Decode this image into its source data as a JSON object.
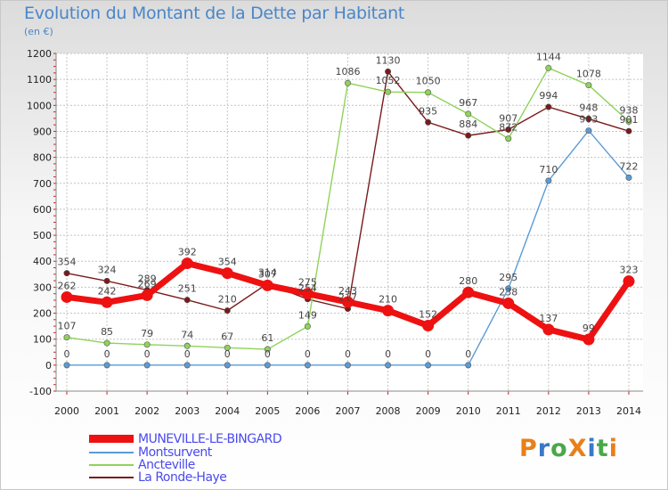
{
  "title": "Evolution du Montant de la Dette par Habitant",
  "subtitle": "(en €)",
  "logo": {
    "text": "ProXiti",
    "letters": [
      "P",
      "r",
      "o",
      "X",
      "i",
      "t",
      "i"
    ],
    "colors": [
      "#e8801a",
      "#3a78c8",
      "#4aa84a",
      "#e8801a",
      "#3a78c8",
      "#4aa84a",
      "#e8801a"
    ]
  },
  "chart_data": {
    "type": "line",
    "x": [
      "2000",
      "2001",
      "2002",
      "2003",
      "2004",
      "2005",
      "2006",
      "2007",
      "2008",
      "2009",
      "2010",
      "2011",
      "2012",
      "2013",
      "2014"
    ],
    "ylim": [
      -100,
      1200
    ],
    "yticks": [
      "-100",
      "0",
      "100",
      "200",
      "300",
      "400",
      "500",
      "600",
      "700",
      "800",
      "900",
      "1000",
      "1100",
      "1200"
    ],
    "grid": true,
    "legend_position": "bottom-left",
    "series": [
      {
        "name": "MUNEVILLE-LE-BINGARD",
        "color": "#ee1111",
        "values": [
          262,
          242,
          269,
          392,
          354,
          307,
          275,
          243,
          210,
          152,
          280,
          238,
          137,
          99,
          323
        ],
        "labels": [
          "262",
          "242",
          "269",
          "392",
          "354",
          "307",
          "275",
          "243",
          "210",
          "152",
          "280",
          "238",
          "137",
          "99",
          "323"
        ]
      },
      {
        "name": "Montsurvent",
        "color": "#5b9bd5",
        "values": [
          0,
          0,
          0,
          0,
          0,
          0,
          0,
          0,
          0,
          0,
          0,
          295,
          710,
          903,
          722
        ],
        "labels": [
          "0",
          "0",
          "0",
          "0",
          "0",
          "0",
          "0",
          "0",
          "0",
          "0",
          "0",
          "295",
          "710",
          "903",
          "722"
        ]
      },
      {
        "name": "Ancteville",
        "color": "#8fd35a",
        "values": [
          107,
          85,
          79,
          74,
          67,
          61,
          149,
          1086,
          1052,
          1050,
          967,
          872,
          1144,
          1078,
          938
        ],
        "labels": [
          "107",
          "85",
          "79",
          "74",
          "67",
          "61",
          "149",
          "1086",
          "1052",
          "1050",
          "967",
          "872",
          "1144",
          "1078",
          "938"
        ]
      },
      {
        "name": "La Ronde-Haye",
        "color": "#7a1a1a",
        "values": [
          354,
          324,
          289,
          251,
          210,
          314,
          254,
          217,
          1130,
          935,
          884,
          907,
          994,
          948,
          901
        ],
        "labels": [
          "354",
          "324",
          "289",
          "251",
          "210",
          "314",
          "254",
          "217",
          "1130",
          "935",
          "884",
          "907",
          "994",
          "948",
          "901"
        ]
      }
    ]
  }
}
